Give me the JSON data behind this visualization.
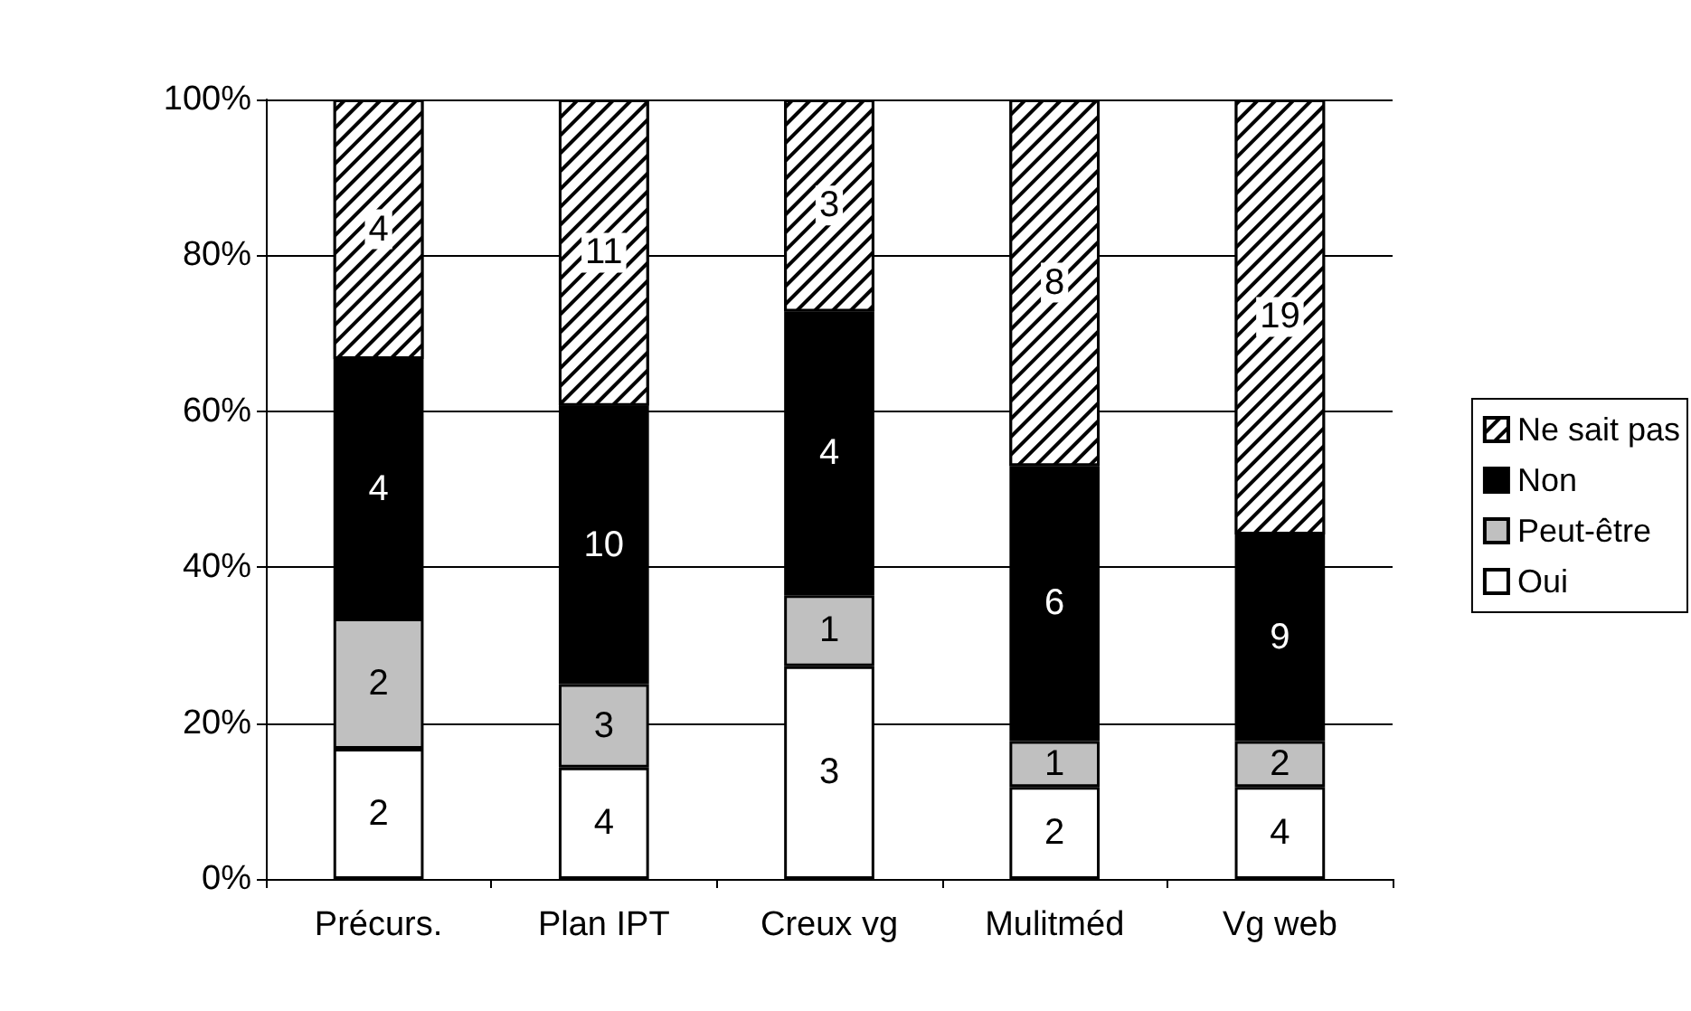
{
  "chart_data": {
    "type": "bar",
    "stacked": true,
    "categories": [
      "Précurs.",
      "Plan IPT",
      "Creux vg",
      "Mulitméd",
      "Vg web"
    ],
    "series": [
      {
        "name": "Oui",
        "color": "#ffffff",
        "values": [
          16.7,
          14.3,
          27.3,
          11.8,
          11.8
        ]
      },
      {
        "name": "Peut-être",
        "color": "#c0c0c0",
        "values": [
          16.7,
          10.7,
          9.1,
          5.9,
          5.9
        ]
      },
      {
        "name": "Non",
        "color": "#000000",
        "values": [
          33.3,
          35.7,
          36.4,
          35.3,
          26.5
        ]
      },
      {
        "name": "Ne sait pas",
        "color": "#000000",
        "values": [
          33.3,
          39.3,
          27.2,
          47.0,
          55.8
        ]
      }
    ],
    "annotations": [
      "2",
      "2",
      "4",
      "4",
      "4",
      "3",
      "10",
      "11",
      "3",
      "1",
      "4",
      "3",
      "2",
      "1",
      "6",
      "8",
      "4",
      "2",
      "9",
      "19"
    ],
    "ylim": [
      0,
      100
    ],
    "yticks": [
      {
        "value": 0,
        "label": "0%"
      },
      {
        "value": 20,
        "label": "20%"
      },
      {
        "value": 40,
        "label": "40%"
      },
      {
        "value": 60,
        "label": "60%"
      },
      {
        "value": 80,
        "label": "80%"
      },
      {
        "value": 100,
        "label": "100%"
      }
    ],
    "grid": "y",
    "legend": "right"
  }
}
